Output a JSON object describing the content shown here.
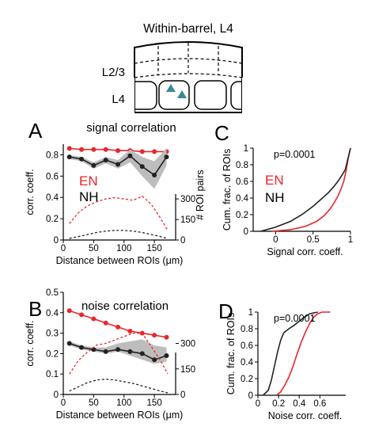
{
  "schematic": {
    "title": "Within-barrel, L4",
    "label_l23": "L2/3",
    "label_l4": "L4",
    "marker_color": "#3a8a93"
  },
  "colors": {
    "en": "#e8262b",
    "nh": "#222222",
    "shade": "#bdbdbd"
  },
  "panels": {
    "A": {
      "letter": "A",
      "title": "signal correlation"
    },
    "B": {
      "letter": "B",
      "title": "noise correlation"
    },
    "C": {
      "letter": "C",
      "pvalue": "p=0.0001"
    },
    "D": {
      "letter": "D",
      "pvalue": "p=0.0001"
    }
  },
  "legend": {
    "en": "EN",
    "nh": "NH"
  },
  "chart_data": [
    {
      "id": "A",
      "type": "line",
      "title": "signal correlation",
      "xlabel": "Distance between ROIs (μm)",
      "ylabel": "corr. coeff.",
      "y2label": "# ROI pairs",
      "xlim": [
        0,
        185
      ],
      "ylim": [
        0,
        0.9
      ],
      "y2lim": [
        0,
        700
      ],
      "xticks": [
        "0",
        "50",
        "100",
        "150"
      ],
      "yticks": [
        "0",
        "0.2",
        "0.4",
        "0.6",
        "0.8"
      ],
      "y2ticks": [
        "0",
        "150",
        "300"
      ],
      "series": [
        {
          "name": "EN",
          "color": "#e8262b",
          "x": [
            10,
            30,
            50,
            70,
            90,
            110,
            130,
            150,
            170
          ],
          "y": [
            0.86,
            0.85,
            0.85,
            0.85,
            0.84,
            0.84,
            0.83,
            0.83,
            0.83
          ]
        },
        {
          "name": "NH",
          "color": "#222222",
          "x": [
            10,
            30,
            50,
            70,
            90,
            110,
            130,
            150,
            170
          ],
          "y": [
            0.78,
            0.76,
            0.7,
            0.75,
            0.71,
            0.79,
            0.69,
            0.61,
            0.78
          ],
          "y_low": [
            0.76,
            0.74,
            0.67,
            0.72,
            0.67,
            0.73,
            0.6,
            0.48,
            0.7
          ],
          "y_high": [
            0.8,
            0.78,
            0.73,
            0.78,
            0.75,
            0.85,
            0.78,
            0.74,
            0.86
          ]
        },
        {
          "name": "EN pairs",
          "color": "#e8262b",
          "dashed": true,
          "axis": "right",
          "x": [
            10,
            25,
            40,
            55,
            70,
            85,
            100,
            115,
            130,
            145,
            160,
            172
          ],
          "y": [
            120,
            200,
            250,
            280,
            300,
            310,
            300,
            290,
            320,
            260,
            160,
            70
          ]
        },
        {
          "name": "NH pairs",
          "color": "#222222",
          "dashed": true,
          "axis": "right",
          "x": [
            10,
            25,
            40,
            55,
            70,
            85,
            100,
            115,
            130,
            145,
            160,
            172
          ],
          "y": [
            12,
            25,
            40,
            55,
            65,
            70,
            70,
            65,
            55,
            40,
            25,
            10
          ]
        }
      ]
    },
    {
      "id": "B",
      "type": "line",
      "title": "noise correlation",
      "xlabel": "Distance between ROIs (μm)",
      "ylabel": "corr. coeff.",
      "xlim": [
        0,
        185
      ],
      "ylim": [
        0,
        0.5
      ],
      "y2lim": [
        0,
        600
      ],
      "xticks": [
        "0",
        "50",
        "100",
        "150"
      ],
      "yticks": [
        "0",
        "0.1",
        "0.2",
        "0.3",
        "0.4",
        "0.5"
      ],
      "y2ticks": [
        "0",
        "150",
        "300"
      ],
      "series": [
        {
          "name": "EN",
          "color": "#e8262b",
          "x": [
            10,
            30,
            50,
            70,
            90,
            110,
            130,
            150,
            170
          ],
          "y": [
            0.41,
            0.39,
            0.37,
            0.35,
            0.33,
            0.31,
            0.3,
            0.29,
            0.28
          ]
        },
        {
          "name": "NH",
          "color": "#222222",
          "x": [
            10,
            30,
            50,
            70,
            90,
            110,
            130,
            150,
            170
          ],
          "y": [
            0.25,
            0.23,
            0.22,
            0.21,
            0.22,
            0.21,
            0.2,
            0.17,
            0.19
          ],
          "y_low": [
            0.24,
            0.22,
            0.21,
            0.2,
            0.21,
            0.19,
            0.17,
            0.15,
            0.16
          ],
          "y_high": [
            0.26,
            0.24,
            0.23,
            0.23,
            0.25,
            0.26,
            0.27,
            0.24,
            0.23
          ]
        },
        {
          "name": "EN pairs",
          "color": "#e8262b",
          "dashed": true,
          "axis": "right",
          "x": [
            10,
            25,
            40,
            55,
            70,
            85,
            100,
            115,
            130,
            145,
            160,
            172
          ],
          "y": [
            120,
            200,
            250,
            290,
            300,
            320,
            340,
            360,
            360,
            280,
            200,
            120
          ]
        },
        {
          "name": "NH pairs",
          "color": "#222222",
          "dashed": true,
          "axis": "right",
          "x": [
            10,
            25,
            40,
            55,
            70,
            85,
            100,
            115,
            130,
            145,
            160,
            172
          ],
          "y": [
            20,
            45,
            70,
            85,
            90,
            85,
            75,
            65,
            50,
            35,
            20,
            10
          ]
        }
      ]
    },
    {
      "id": "C",
      "type": "line",
      "xlabel": "Signal corr. coeff.",
      "ylabel": "Cum. frac. of ROIs",
      "xlim": [
        -0.3,
        1
      ],
      "ylim": [
        0,
        1.0
      ],
      "xticks": [
        "0",
        "0.5",
        "1"
      ],
      "yticks": [
        "0",
        "0.2",
        "0.4",
        "0.6",
        "0.8",
        "1"
      ],
      "series": [
        {
          "name": "EN",
          "color": "#e8262b",
          "x": [
            -0.05,
            0.2,
            0.4,
            0.55,
            0.65,
            0.72,
            0.78,
            0.83,
            0.87,
            0.91,
            0.94,
            0.97,
            1.0
          ],
          "y": [
            0.0,
            0.02,
            0.06,
            0.12,
            0.19,
            0.26,
            0.34,
            0.42,
            0.5,
            0.6,
            0.72,
            0.88,
            1.0
          ]
        },
        {
          "name": "NH",
          "color": "#222222",
          "x": [
            -0.2,
            0.0,
            0.2,
            0.35,
            0.5,
            0.6,
            0.7,
            0.78,
            0.84,
            0.89,
            0.93,
            0.96,
            1.0
          ],
          "y": [
            0.0,
            0.05,
            0.12,
            0.2,
            0.3,
            0.38,
            0.46,
            0.54,
            0.61,
            0.68,
            0.74,
            0.85,
            1.0
          ]
        }
      ]
    },
    {
      "id": "D",
      "type": "line",
      "xlabel": "Noise corr. coeff.",
      "ylabel": "Cum. frac. of ROIs",
      "xlim": [
        0,
        0.85
      ],
      "ylim": [
        0,
        1.0
      ],
      "xticks": [
        "0",
        "0.2",
        "0.4",
        "0.6"
      ],
      "yticks": [
        "0",
        "0.2",
        "0.4",
        "0.6",
        "0.8",
        "1"
      ],
      "series": [
        {
          "name": "EN",
          "color": "#e8262b",
          "x": [
            0.18,
            0.22,
            0.26,
            0.3,
            0.34,
            0.38,
            0.42,
            0.46,
            0.5,
            0.54,
            0.58,
            0.62,
            0.7
          ],
          "y": [
            0.0,
            0.04,
            0.12,
            0.22,
            0.35,
            0.5,
            0.64,
            0.76,
            0.86,
            0.94,
            0.98,
            1.0,
            1.0
          ]
        },
        {
          "name": "NH",
          "color": "#222222",
          "x": [
            0.05,
            0.1,
            0.13,
            0.16,
            0.19,
            0.22,
            0.25,
            0.3,
            0.35,
            0.4,
            0.45,
            0.5,
            0.58
          ],
          "y": [
            0.0,
            0.06,
            0.18,
            0.35,
            0.52,
            0.66,
            0.75,
            0.8,
            0.84,
            0.89,
            0.94,
            0.98,
            1.0
          ]
        }
      ]
    }
  ]
}
